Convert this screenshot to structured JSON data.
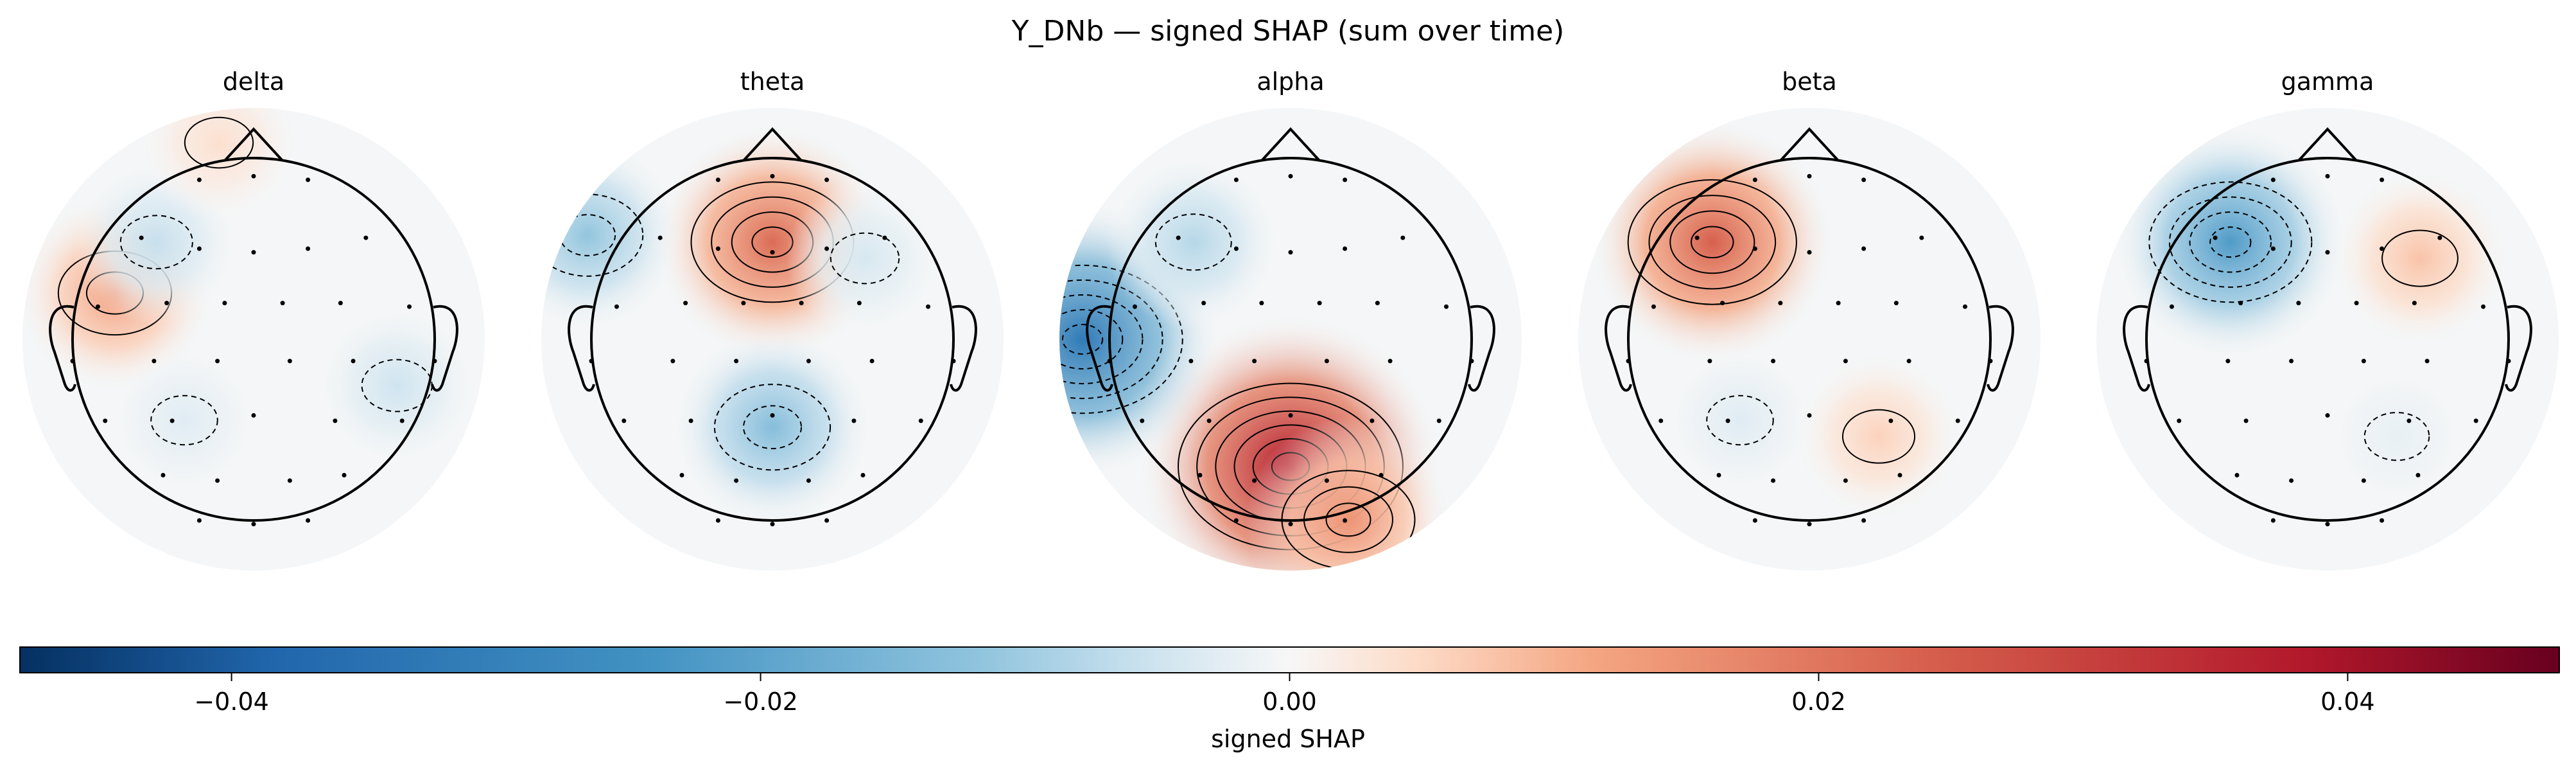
{
  "figure": {
    "title": "Y_DNb — signed SHAP (sum over time)"
  },
  "colors": {
    "negative_extreme": "#053061",
    "negative": "#2166ac",
    "neutral": "#f7f7f7",
    "positive": "#b2182b",
    "positive_extreme": "#67001f",
    "contour_line": "#000000"
  },
  "chart_data": {
    "type": "heatmap",
    "subtype": "eeg-topomap",
    "title": "Y_DNb — signed SHAP (sum over time)",
    "panels": [
      {
        "name": "delta",
        "hotspots": [
          {
            "region": "left-frontotemporal",
            "value": 0.013
          },
          {
            "region": "left-frontal",
            "value": -0.006
          },
          {
            "region": "right-temporal",
            "value": -0.005
          },
          {
            "region": "left-parietal",
            "value": -0.003
          },
          {
            "region": "frontal-pole",
            "value": 0.004
          }
        ]
      },
      {
        "name": "theta",
        "hotspots": [
          {
            "region": "frontal-midline",
            "value": 0.022
          },
          {
            "region": "left-frontal-lateral",
            "value": -0.012
          },
          {
            "region": "parietal-midline",
            "value": -0.014
          },
          {
            "region": "right-frontal",
            "value": -0.004
          }
        ]
      },
      {
        "name": "alpha",
        "hotspots": [
          {
            "region": "parieto-occipital",
            "value": 0.038
          },
          {
            "region": "left-temporal",
            "value": -0.032
          },
          {
            "region": "left-frontal",
            "value": -0.008
          },
          {
            "region": "right-occipital",
            "value": 0.015
          }
        ]
      },
      {
        "name": "beta",
        "hotspots": [
          {
            "region": "left-frontal",
            "value": 0.024
          },
          {
            "region": "right-parietal",
            "value": 0.006
          },
          {
            "region": "left-parietal",
            "value": -0.003
          }
        ]
      },
      {
        "name": "gamma",
        "hotspots": [
          {
            "region": "left-frontal",
            "value": -0.022
          },
          {
            "region": "right-frontal",
            "value": 0.008
          },
          {
            "region": "right-parietal",
            "value": -0.002
          }
        ]
      }
    ],
    "colorbar": {
      "label": "signed SHAP",
      "range": [
        -0.048,
        0.048
      ],
      "ticks": [
        "−0.04",
        "−0.02",
        "0.00",
        "0.02",
        "0.04"
      ],
      "tick_values": [
        -0.04,
        -0.02,
        0.0,
        0.02,
        0.04
      ],
      "colormap": "RdBu_r"
    },
    "grid": false
  }
}
